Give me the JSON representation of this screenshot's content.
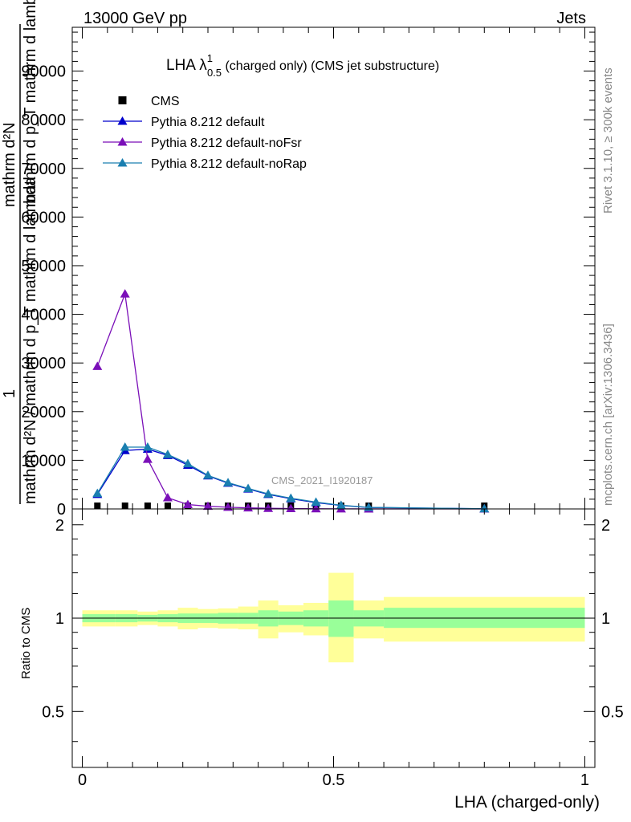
{
  "header": {
    "energy": "13000 GeV pp",
    "process": "Jets"
  },
  "side_text": {
    "rivet": "Rivet 3.1.10, ≥ 300k events",
    "source": "mcplots.cern.ch [arXiv:1306.3436]"
  },
  "plot_title": {
    "lha": "LHA λ",
    "sup": "1",
    "sub": "0.5",
    "rest": " (charged only) (CMS jet substructure)"
  },
  "watermark": "CMS_2021_I1920187",
  "legend": [
    {
      "label": "CMS"
    },
    {
      "label": "Pythia 8.212 default"
    },
    {
      "label": "Pythia 8.212 default-noFsr"
    },
    {
      "label": "Pythia 8.212 default-noRap"
    }
  ],
  "colors": {
    "data": "#000000",
    "default": "#0000cc",
    "noFsr": "#7a0fb8",
    "noRap": "#1a7fb0",
    "band_inner": "#99ff99",
    "band_outer": "#ffff99"
  },
  "chart_data": [
    {
      "type": "line",
      "title": "LHA λ^1_0.5 (charged only) (CMS jet substructure)",
      "xlabel": "LHA (charged-only)",
      "ylabel_parts": [
        "1",
        "mathrm d²N / mathrm d p_T mathrm d lambda",
        "mathrm d²N",
        "mathrm d p_T mathrm d lambda"
      ],
      "xlim": [
        -0.02,
        1.02
      ],
      "ylim": [
        0,
        99000
      ],
      "yticks": [
        0,
        10000,
        20000,
        30000,
        40000,
        50000,
        60000,
        70000,
        80000,
        90000
      ],
      "ytick_labels": [
        "0",
        "10000",
        "20000",
        "30000",
        "40000",
        "50000",
        "60000",
        "70000",
        "80000",
        "90000"
      ],
      "x": [
        0.03,
        0.085,
        0.13,
        0.17,
        0.21,
        0.25,
        0.29,
        0.33,
        0.37,
        0.415,
        0.465,
        0.515,
        0.57,
        0.8
      ],
      "series": [
        {
          "name": "CMS",
          "key": "data",
          "marker": "square",
          "values": [
            300,
            300,
            300,
            300,
            250,
            200,
            150,
            100,
            60,
            40,
            20,
            10,
            5,
            2
          ]
        },
        {
          "name": "Pythia 8.212 default",
          "key": "default",
          "marker": "triangle",
          "values": [
            3000,
            12000,
            12300,
            11000,
            9000,
            6800,
            5300,
            4100,
            3000,
            2100,
            1300,
            700,
            300,
            30
          ]
        },
        {
          "name": "Pythia 8.212 default-noFsr",
          "key": "noFsr",
          "marker": "triangle",
          "values": [
            29300,
            44200,
            10200,
            2300,
            900,
            550,
            350,
            220,
            130,
            80,
            40,
            20,
            8,
            1
          ]
        },
        {
          "name": "Pythia 8.212 default-noRap",
          "key": "noRap",
          "marker": "triangle",
          "values": [
            3200,
            12700,
            12700,
            11200,
            9300,
            6900,
            5400,
            4200,
            3100,
            2200,
            1400,
            750,
            320,
            35
          ]
        }
      ]
    },
    {
      "type": "area",
      "ylabel": "Ratio to CMS",
      "xlabel": "LHA (charged-only)",
      "xlim": [
        -0.02,
        1.02
      ],
      "ylim": [
        0.33,
        2.25
      ],
      "yticks": [
        0.5,
        1,
        2
      ],
      "ytick_labels": [
        "0.5",
        "1",
        "2"
      ],
      "xticks": [
        0,
        0.5,
        1
      ],
      "xtick_labels": [
        "0",
        "0.5",
        "1"
      ],
      "reference": 1.0,
      "bins": [
        {
          "lo": 0.0,
          "hi": 0.065,
          "inner": [
            0.97,
            1.03
          ],
          "outer": [
            0.94,
            1.06
          ]
        },
        {
          "lo": 0.065,
          "hi": 0.11,
          "inner": [
            0.97,
            1.03
          ],
          "outer": [
            0.94,
            1.06
          ]
        },
        {
          "lo": 0.11,
          "hi": 0.15,
          "inner": [
            0.975,
            1.025
          ],
          "outer": [
            0.95,
            1.05
          ]
        },
        {
          "lo": 0.15,
          "hi": 0.19,
          "inner": [
            0.97,
            1.03
          ],
          "outer": [
            0.94,
            1.06
          ]
        },
        {
          "lo": 0.19,
          "hi": 0.23,
          "inner": [
            0.965,
            1.035
          ],
          "outer": [
            0.92,
            1.08
          ]
        },
        {
          "lo": 0.23,
          "hi": 0.27,
          "inner": [
            0.965,
            1.035
          ],
          "outer": [
            0.93,
            1.07
          ]
        },
        {
          "lo": 0.27,
          "hi": 0.31,
          "inner": [
            0.96,
            1.04
          ],
          "outer": [
            0.925,
            1.075
          ]
        },
        {
          "lo": 0.31,
          "hi": 0.35,
          "inner": [
            0.96,
            1.04
          ],
          "outer": [
            0.92,
            1.09
          ]
        },
        {
          "lo": 0.35,
          "hi": 0.39,
          "inner": [
            0.94,
            1.06
          ],
          "outer": [
            0.86,
            1.14
          ]
        },
        {
          "lo": 0.39,
          "hi": 0.44,
          "inner": [
            0.95,
            1.05
          ],
          "outer": [
            0.9,
            1.1
          ]
        },
        {
          "lo": 0.44,
          "hi": 0.49,
          "inner": [
            0.94,
            1.06
          ],
          "outer": [
            0.88,
            1.12
          ]
        },
        {
          "lo": 0.49,
          "hi": 0.54,
          "inner": [
            0.87,
            1.14
          ],
          "outer": [
            0.72,
            1.4
          ]
        },
        {
          "lo": 0.54,
          "hi": 0.6,
          "inner": [
            0.94,
            1.06
          ],
          "outer": [
            0.86,
            1.14
          ]
        },
        {
          "lo": 0.6,
          "hi": 1.0,
          "inner": [
            0.93,
            1.08
          ],
          "outer": [
            0.84,
            1.17
          ]
        }
      ]
    }
  ]
}
